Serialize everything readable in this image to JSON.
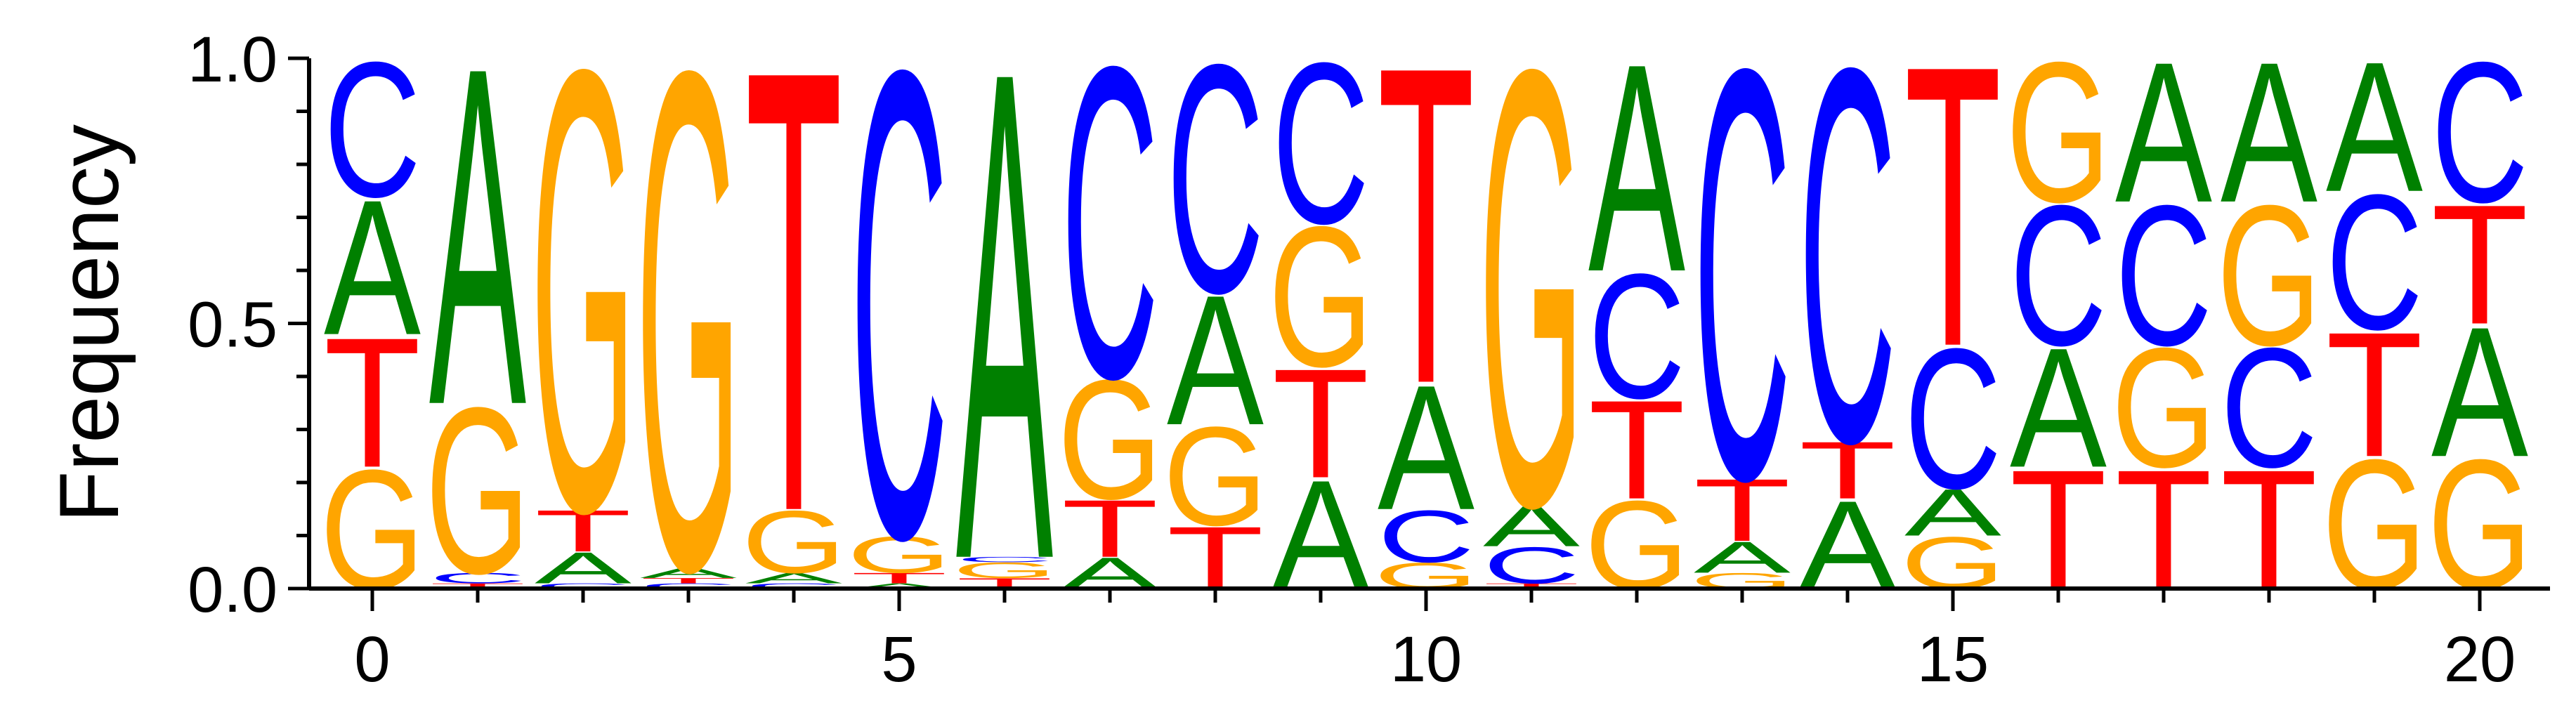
{
  "chart_data": {
    "type": "sequence-logo",
    "ylabel": "Frequency",
    "ylim": [
      0,
      1.0
    ],
    "y_ticks": [
      "0.0",
      "0.5",
      "1.0"
    ],
    "y_tick_values": [
      0,
      0.5,
      1.0
    ],
    "x_ticks": [
      "0",
      "5",
      "10",
      "15",
      "20"
    ],
    "x_tick_values": [
      0,
      5,
      10,
      15,
      20
    ],
    "colors": {
      "A": "#008000",
      "C": "#0000ff",
      "G": "#ffa500",
      "T": "#ff0000"
    },
    "positions": [
      {
        "x": 0,
        "stack": [
          [
            "G",
            0.23
          ],
          [
            "T",
            0.25
          ],
          [
            "A",
            0.26
          ],
          [
            "C",
            0.26
          ]
        ]
      },
      {
        "x": 1,
        "stack": [
          [
            "T",
            0.01
          ],
          [
            "C",
            0.02
          ],
          [
            "G",
            0.32
          ],
          [
            "A",
            0.65
          ]
        ]
      },
      {
        "x": 2,
        "stack": [
          [
            "C",
            0.01
          ],
          [
            "A",
            0.06
          ],
          [
            "T",
            0.08
          ],
          [
            "G",
            0.85
          ]
        ]
      },
      {
        "x": 3,
        "stack": [
          [
            "C",
            0.01
          ],
          [
            "T",
            0.01
          ],
          [
            "A",
            0.02
          ],
          [
            "G",
            0.96
          ]
        ]
      },
      {
        "x": 4,
        "stack": [
          [
            "C",
            0.01
          ],
          [
            "A",
            0.02
          ],
          [
            "G",
            0.12
          ],
          [
            "T",
            0.85
          ]
        ]
      },
      {
        "x": 5,
        "stack": [
          [
            "A",
            0.01
          ],
          [
            "T",
            0.02
          ],
          [
            "G",
            0.07
          ],
          [
            "C",
            0.9
          ]
        ]
      },
      {
        "x": 6,
        "stack": [
          [
            "T",
            0.02
          ],
          [
            "G",
            0.03
          ],
          [
            "C",
            0.01
          ],
          [
            "A",
            0.94
          ]
        ]
      },
      {
        "x": 7,
        "stack": [
          [
            "A",
            0.06
          ],
          [
            "T",
            0.11
          ],
          [
            "G",
            0.23
          ],
          [
            "C",
            0.6
          ]
        ]
      },
      {
        "x": 8,
        "stack": [
          [
            "T",
            0.12
          ],
          [
            "G",
            0.19
          ],
          [
            "A",
            0.25
          ],
          [
            "C",
            0.44
          ]
        ]
      },
      {
        "x": 9,
        "stack": [
          [
            "A",
            0.21
          ],
          [
            "T",
            0.21
          ],
          [
            "G",
            0.27
          ],
          [
            "C",
            0.31
          ]
        ]
      },
      {
        "x": 10,
        "stack": [
          [
            "G",
            0.05
          ],
          [
            "C",
            0.1
          ],
          [
            "A",
            0.24
          ],
          [
            "T",
            0.61
          ]
        ]
      },
      {
        "x": 11,
        "stack": [
          [
            "T",
            0.01
          ],
          [
            "C",
            0.07
          ],
          [
            "A",
            0.08
          ],
          [
            "G",
            0.84
          ]
        ]
      },
      {
        "x": 12,
        "stack": [
          [
            "G",
            0.17
          ],
          [
            "T",
            0.19
          ],
          [
            "C",
            0.24
          ],
          [
            "A",
            0.4
          ]
        ]
      },
      {
        "x": 13,
        "stack": [
          [
            "G",
            0.03
          ],
          [
            "A",
            0.06
          ],
          [
            "T",
            0.12
          ],
          [
            "C",
            0.79
          ]
        ]
      },
      {
        "x": 14,
        "stack": [
          [
            "A",
            0.17
          ],
          [
            "T",
            0.11
          ],
          [
            "C",
            0.72
          ]
        ]
      },
      {
        "x": 15,
        "stack": [
          [
            "G",
            0.1
          ],
          [
            "A",
            0.09
          ],
          [
            "C",
            0.27
          ],
          [
            "T",
            0.54
          ]
        ]
      },
      {
        "x": 16,
        "stack": [
          [
            "T",
            0.23
          ],
          [
            "A",
            0.23
          ],
          [
            "C",
            0.27
          ],
          [
            "G",
            0.27
          ]
        ]
      },
      {
        "x": 17,
        "stack": [
          [
            "T",
            0.23
          ],
          [
            "G",
            0.23
          ],
          [
            "C",
            0.27
          ],
          [
            "A",
            0.27
          ]
        ]
      },
      {
        "x": 18,
        "stack": [
          [
            "T",
            0.23
          ],
          [
            "C",
            0.23
          ],
          [
            "G",
            0.27
          ],
          [
            "A",
            0.27
          ]
        ]
      },
      {
        "x": 19,
        "stack": [
          [
            "G",
            0.25
          ],
          [
            "T",
            0.24
          ],
          [
            "C",
            0.26
          ],
          [
            "A",
            0.25
          ]
        ]
      },
      {
        "x": 20,
        "stack": [
          [
            "G",
            0.25
          ],
          [
            "A",
            0.25
          ],
          [
            "T",
            0.23
          ],
          [
            "C",
            0.27
          ]
        ]
      }
    ]
  }
}
